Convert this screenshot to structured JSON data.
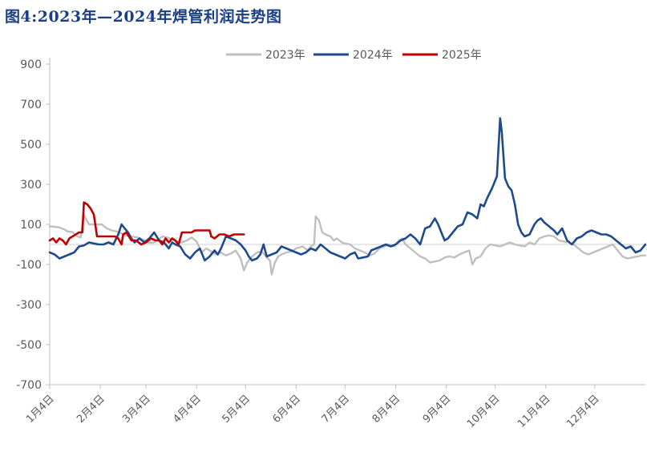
{
  "title": "图4:2023年—2024年焊管利润走势图",
  "colors": {
    "s2023": "#bfbfbf",
    "s2024": "#1f4b8e",
    "s2025": "#c00000",
    "axis": "#bfbfbf",
    "title": "#1b3f86"
  },
  "chart_data": {
    "type": "line",
    "title": "图4:2023年—2024年焊管利润走势图",
    "xlabel": "",
    "ylabel": "",
    "ylim": [
      -700,
      900
    ],
    "yticks": [
      "900",
      "700",
      "500",
      "300",
      "100",
      "-100",
      "-300",
      "-500",
      "-700"
    ],
    "yticks_values": [
      900,
      700,
      500,
      300,
      100,
      -100,
      -300,
      -500,
      -700
    ],
    "xlim": [
      0,
      365
    ],
    "xtick_labels": [
      "1月4日",
      "2月4日",
      "3月4日",
      "4月4日",
      "5月4日",
      "6月4日",
      "7月4日",
      "8月4日",
      "9月4日",
      "10月4日",
      "11月4日",
      "12月4日"
    ],
    "xtick_days": [
      0,
      31,
      59,
      90,
      120,
      151,
      181,
      212,
      243,
      273,
      304,
      334
    ],
    "legend_position": "top-center",
    "series": [
      {
        "name": "2023年",
        "color_key": "s2023",
        "points": [
          [
            0,
            90
          ],
          [
            3,
            88
          ],
          [
            6,
            85
          ],
          [
            9,
            75
          ],
          [
            11,
            65
          ],
          [
            14,
            62
          ],
          [
            17,
            40
          ],
          [
            19,
            35
          ],
          [
            20,
            100
          ],
          [
            21,
            150
          ],
          [
            22,
            130
          ],
          [
            24,
            100
          ],
          [
            28,
            100
          ],
          [
            32,
            100
          ],
          [
            35,
            80
          ],
          [
            38,
            70
          ],
          [
            41,
            65
          ],
          [
            44,
            55
          ],
          [
            47,
            45
          ],
          [
            50,
            40
          ],
          [
            54,
            35
          ],
          [
            57,
            25
          ],
          [
            60,
            10
          ],
          [
            63,
            8
          ],
          [
            66,
            20
          ],
          [
            69,
            40
          ],
          [
            72,
            35
          ],
          [
            75,
            25
          ],
          [
            78,
            15
          ],
          [
            81,
            10
          ],
          [
            84,
            20
          ],
          [
            87,
            35
          ],
          [
            90,
            15
          ],
          [
            93,
            -40
          ],
          [
            96,
            -20
          ],
          [
            99,
            -35
          ],
          [
            102,
            -50
          ],
          [
            105,
            -40
          ],
          [
            108,
            -55
          ],
          [
            111,
            -45
          ],
          [
            114,
            -30
          ],
          [
            117,
            -70
          ],
          [
            119,
            -130
          ],
          [
            121,
            -90
          ],
          [
            124,
            -60
          ],
          [
            127,
            -40
          ],
          [
            130,
            -35
          ],
          [
            133,
            -65
          ],
          [
            135,
            -80
          ],
          [
            136,
            -150
          ],
          [
            138,
            -90
          ],
          [
            140,
            -60
          ],
          [
            142,
            -50
          ],
          [
            145,
            -40
          ],
          [
            148,
            -35
          ],
          [
            151,
            -20
          ],
          [
            155,
            -10
          ],
          [
            158,
            -30
          ],
          [
            160,
            -10
          ],
          [
            162,
            0
          ],
          [
            163,
            140
          ],
          [
            165,
            120
          ],
          [
            167,
            60
          ],
          [
            169,
            50
          ],
          [
            172,
            40
          ],
          [
            174,
            20
          ],
          [
            176,
            30
          ],
          [
            179,
            10
          ],
          [
            181,
            5
          ],
          [
            184,
            0
          ],
          [
            187,
            -20
          ],
          [
            190,
            -30
          ],
          [
            193,
            -40
          ],
          [
            196,
            -55
          ],
          [
            199,
            -45
          ],
          [
            202,
            -20
          ],
          [
            205,
            -10
          ],
          [
            208,
            0
          ],
          [
            211,
            -10
          ],
          [
            214,
            20
          ],
          [
            216,
            30
          ],
          [
            218,
            0
          ],
          [
            221,
            -20
          ],
          [
            224,
            -40
          ],
          [
            227,
            -60
          ],
          [
            230,
            -70
          ],
          [
            233,
            -90
          ],
          [
            236,
            -85
          ],
          [
            239,
            -80
          ],
          [
            242,
            -65
          ],
          [
            245,
            -60
          ],
          [
            248,
            -65
          ],
          [
            251,
            -50
          ],
          [
            254,
            -40
          ],
          [
            257,
            -30
          ],
          [
            259,
            -100
          ],
          [
            261,
            -70
          ],
          [
            264,
            -60
          ],
          [
            267,
            -20
          ],
          [
            270,
            0
          ],
          [
            273,
            -5
          ],
          [
            276,
            -10
          ],
          [
            279,
            0
          ],
          [
            282,
            10
          ],
          [
            285,
            0
          ],
          [
            288,
            -5
          ],
          [
            291,
            -10
          ],
          [
            294,
            10
          ],
          [
            297,
            0
          ],
          [
            300,
            30
          ],
          [
            303,
            40
          ],
          [
            306,
            45
          ],
          [
            309,
            40
          ],
          [
            312,
            20
          ],
          [
            315,
            15
          ],
          [
            318,
            10
          ],
          [
            321,
            0
          ],
          [
            324,
            -20
          ],
          [
            327,
            -40
          ],
          [
            330,
            -50
          ],
          [
            333,
            -40
          ],
          [
            336,
            -30
          ],
          [
            339,
            -20
          ],
          [
            342,
            -10
          ],
          [
            345,
            0
          ],
          [
            348,
            -30
          ],
          [
            351,
            -60
          ],
          [
            354,
            -70
          ],
          [
            357,
            -65
          ],
          [
            360,
            -60
          ],
          [
            363,
            -55
          ],
          [
            365,
            -55
          ]
        ]
      },
      {
        "name": "2024年",
        "color_key": "s2024",
        "points": [
          [
            0,
            -40
          ],
          [
            3,
            -50
          ],
          [
            6,
            -70
          ],
          [
            9,
            -60
          ],
          [
            12,
            -50
          ],
          [
            15,
            -40
          ],
          [
            18,
            -10
          ],
          [
            21,
            -5
          ],
          [
            24,
            10
          ],
          [
            27,
            5
          ],
          [
            30,
            0
          ],
          [
            33,
            0
          ],
          [
            36,
            10
          ],
          [
            39,
            0
          ],
          [
            42,
            50
          ],
          [
            44,
            100
          ],
          [
            46,
            80
          ],
          [
            48,
            60
          ],
          [
            50,
            30
          ],
          [
            52,
            10
          ],
          [
            55,
            30
          ],
          [
            58,
            10
          ],
          [
            61,
            30
          ],
          [
            64,
            60
          ],
          [
            67,
            20
          ],
          [
            70,
            10
          ],
          [
            73,
            -20
          ],
          [
            75,
            10
          ],
          [
            77,
            0
          ],
          [
            80,
            -10
          ],
          [
            83,
            -50
          ],
          [
            86,
            -70
          ],
          [
            89,
            -40
          ],
          [
            92,
            -20
          ],
          [
            95,
            -80
          ],
          [
            98,
            -60
          ],
          [
            101,
            -30
          ],
          [
            103,
            -50
          ],
          [
            105,
            -20
          ],
          [
            108,
            40
          ],
          [
            111,
            30
          ],
          [
            114,
            20
          ],
          [
            117,
            0
          ],
          [
            120,
            -30
          ],
          [
            122,
            -60
          ],
          [
            124,
            -80
          ],
          [
            127,
            -70
          ],
          [
            129,
            -50
          ],
          [
            131,
            0
          ],
          [
            133,
            -60
          ],
          [
            136,
            -50
          ],
          [
            139,
            -40
          ],
          [
            142,
            -10
          ],
          [
            145,
            -20
          ],
          [
            148,
            -30
          ],
          [
            151,
            -40
          ],
          [
            154,
            -50
          ],
          [
            157,
            -40
          ],
          [
            160,
            -20
          ],
          [
            163,
            -30
          ],
          [
            166,
            0
          ],
          [
            169,
            -20
          ],
          [
            172,
            -40
          ],
          [
            175,
            -50
          ],
          [
            178,
            -60
          ],
          [
            181,
            -70
          ],
          [
            184,
            -50
          ],
          [
            187,
            -40
          ],
          [
            189,
            -70
          ],
          [
            192,
            -65
          ],
          [
            195,
            -60
          ],
          [
            197,
            -30
          ],
          [
            200,
            -20
          ],
          [
            203,
            -10
          ],
          [
            206,
            0
          ],
          [
            209,
            -10
          ],
          [
            212,
            0
          ],
          [
            215,
            20
          ],
          [
            218,
            30
          ],
          [
            221,
            50
          ],
          [
            224,
            30
          ],
          [
            227,
            0
          ],
          [
            230,
            80
          ],
          [
            233,
            90
          ],
          [
            236,
            130
          ],
          [
            238,
            100
          ],
          [
            240,
            60
          ],
          [
            242,
            20
          ],
          [
            244,
            30
          ],
          [
            247,
            60
          ],
          [
            250,
            90
          ],
          [
            253,
            100
          ],
          [
            256,
            160
          ],
          [
            259,
            150
          ],
          [
            262,
            130
          ],
          [
            264,
            200
          ],
          [
            266,
            190
          ],
          [
            268,
            230
          ],
          [
            271,
            280
          ],
          [
            274,
            340
          ],
          [
            276,
            630
          ],
          [
            277,
            560
          ],
          [
            279,
            330
          ],
          [
            281,
            290
          ],
          [
            283,
            270
          ],
          [
            285,
            200
          ],
          [
            287,
            100
          ],
          [
            289,
            60
          ],
          [
            291,
            40
          ],
          [
            294,
            50
          ],
          [
            297,
            100
          ],
          [
            299,
            120
          ],
          [
            301,
            130
          ],
          [
            303,
            110
          ],
          [
            306,
            90
          ],
          [
            309,
            70
          ],
          [
            311,
            50
          ],
          [
            314,
            80
          ],
          [
            317,
            20
          ],
          [
            320,
            0
          ],
          [
            323,
            30
          ],
          [
            326,
            40
          ],
          [
            329,
            60
          ],
          [
            332,
            70
          ],
          [
            335,
            60
          ],
          [
            338,
            50
          ],
          [
            341,
            50
          ],
          [
            344,
            40
          ],
          [
            347,
            20
          ],
          [
            350,
            0
          ],
          [
            353,
            -20
          ],
          [
            356,
            -10
          ],
          [
            359,
            -40
          ],
          [
            362,
            -30
          ],
          [
            365,
            0
          ]
        ]
      },
      {
        "name": "2025年",
        "color_key": "s2025",
        "points": [
          [
            0,
            20
          ],
          [
            2,
            30
          ],
          [
            4,
            10
          ],
          [
            6,
            30
          ],
          [
            8,
            20
          ],
          [
            10,
            0
          ],
          [
            12,
            30
          ],
          [
            14,
            40
          ],
          [
            16,
            50
          ],
          [
            18,
            60
          ],
          [
            20,
            60
          ],
          [
            21,
            210
          ],
          [
            23,
            200
          ],
          [
            25,
            180
          ],
          [
            27,
            150
          ],
          [
            29,
            40
          ],
          [
            31,
            40
          ],
          [
            34,
            40
          ],
          [
            37,
            40
          ],
          [
            40,
            40
          ],
          [
            42,
            30
          ],
          [
            44,
            0
          ],
          [
            45,
            50
          ],
          [
            47,
            60
          ],
          [
            50,
            20
          ],
          [
            53,
            20
          ],
          [
            56,
            0
          ],
          [
            59,
            10
          ],
          [
            62,
            30
          ],
          [
            65,
            20
          ],
          [
            67,
            20
          ],
          [
            69,
            0
          ],
          [
            71,
            30
          ],
          [
            73,
            10
          ],
          [
            75,
            30
          ],
          [
            77,
            20
          ],
          [
            79,
            0
          ],
          [
            81,
            60
          ],
          [
            83,
            60
          ],
          [
            85,
            60
          ],
          [
            87,
            60
          ],
          [
            89,
            70
          ],
          [
            90,
            70
          ],
          [
            92,
            70
          ],
          [
            94,
            70
          ],
          [
            96,
            70
          ],
          [
            98,
            70
          ],
          [
            99,
            40
          ],
          [
            101,
            30
          ],
          [
            104,
            50
          ],
          [
            107,
            50
          ],
          [
            110,
            40
          ],
          [
            113,
            50
          ],
          [
            116,
            50
          ],
          [
            119,
            50
          ]
        ]
      }
    ]
  }
}
